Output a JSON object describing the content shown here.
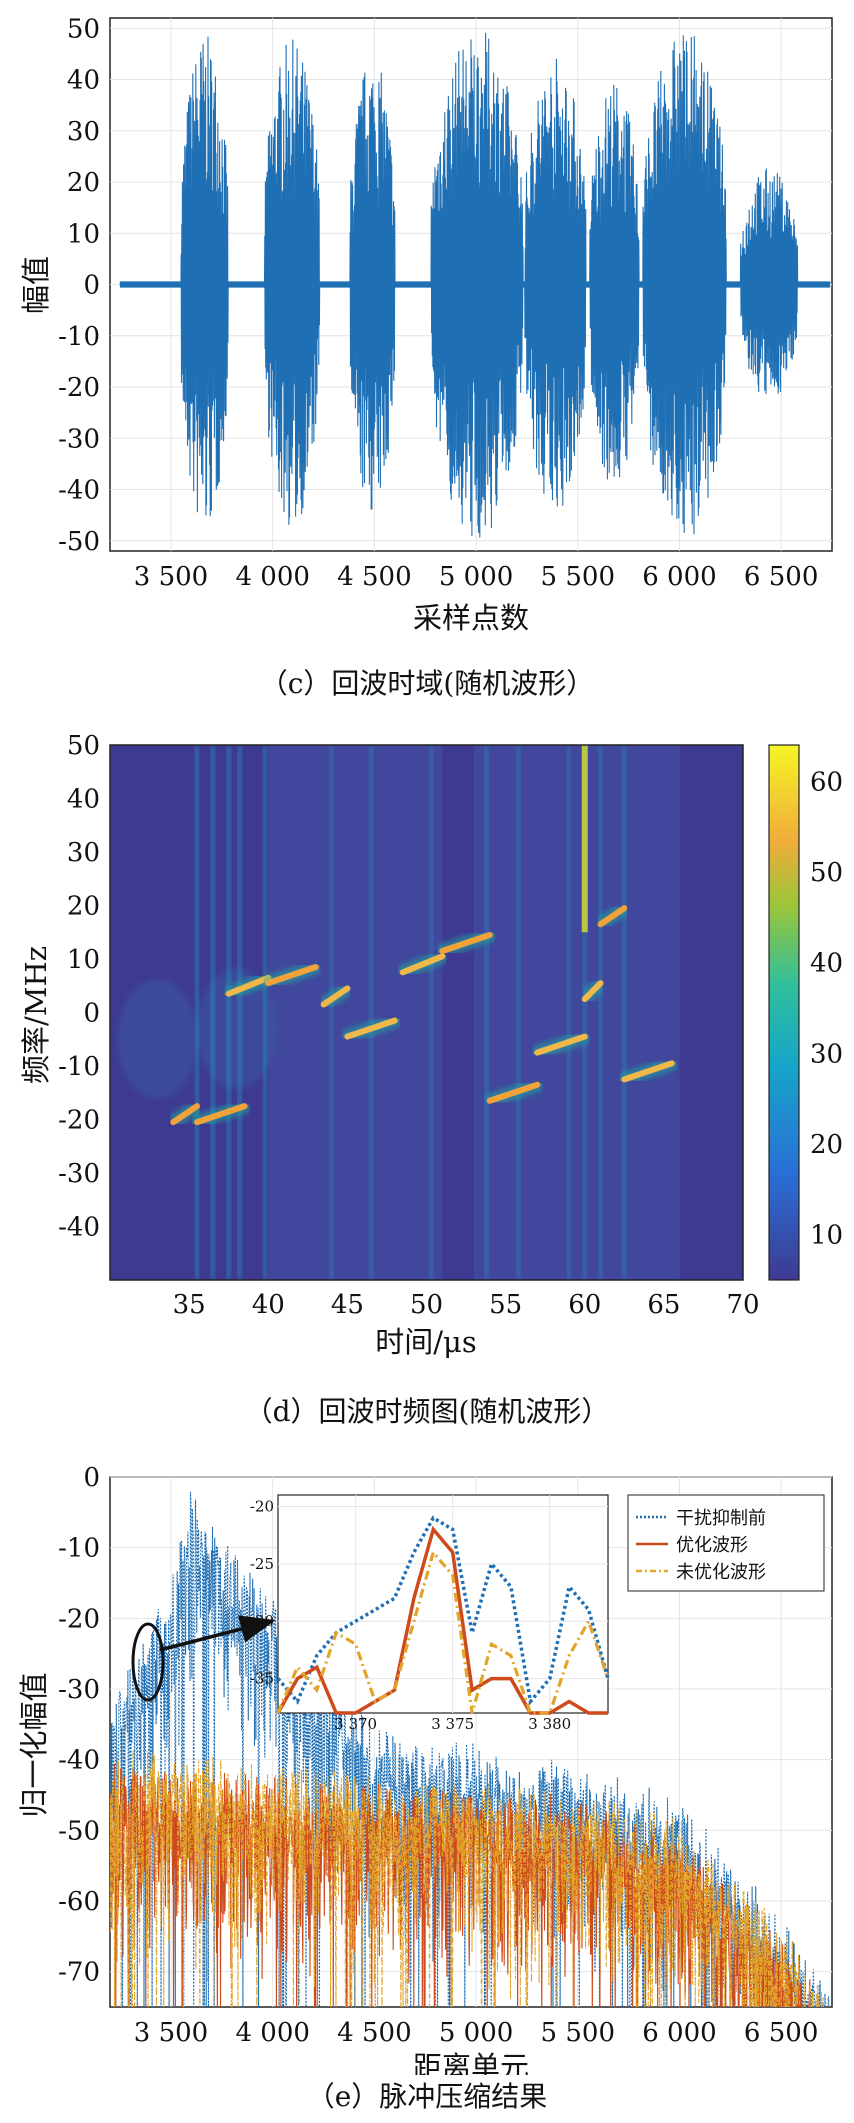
{
  "panels": {
    "c": {
      "caption": "（c）回波时域(随机波形）",
      "ylabel": "幅值",
      "xlabel": "采样点数",
      "yticks": [
        "50",
        "40",
        "30",
        "20",
        "10",
        "0",
        "-10",
        "-20",
        "-30",
        "-40",
        "-50"
      ],
      "xticks": [
        "3 500",
        "4 000",
        "4 500",
        "5 000",
        "5 500",
        "6 000",
        "6 500"
      ]
    },
    "d": {
      "caption": "（d）回波时频图(随机波形）",
      "ylabel": "频率/MHz",
      "xlabel": "时间/μs",
      "yticks": [
        "50",
        "40",
        "30",
        "20",
        "10",
        "0",
        "-10",
        "-20",
        "-30",
        "-40"
      ],
      "xticks": [
        "35",
        "40",
        "45",
        "50",
        "55",
        "60",
        "65",
        "70"
      ],
      "cbticks": [
        "60",
        "50",
        "40",
        "30",
        "20",
        "10"
      ]
    },
    "e": {
      "caption": "（e）脉冲压缩结果",
      "ylabel": "归一化幅值",
      "xlabel": "距离单元",
      "yticks": [
        "0",
        "-10",
        "-20",
        "-30",
        "-40",
        "-50",
        "-60",
        "-70"
      ],
      "xticks": [
        "3 500",
        "4 000",
        "4 500",
        "5 000",
        "5 500",
        "6 000",
        "6 500"
      ],
      "inset_yticks": [
        "-20",
        "-25",
        "-30",
        "-35"
      ],
      "inset_xticks": [
        "3 370",
        "3 375",
        "3 380"
      ],
      "legend": [
        "干扰抑制前",
        "优化波形",
        "未优化波形"
      ]
    }
  },
  "chart_data": [
    {
      "type": "line",
      "title": "",
      "xlabel": "采样点数",
      "ylabel": "幅值",
      "xlim": [
        3200,
        6750
      ],
      "ylim": [
        -52,
        52
      ],
      "grid": true,
      "color": "#1f6fb4",
      "description_of_bursts": [
        {
          "x": [
            3550,
            3780
          ],
          "amp": 49
        },
        {
          "x": [
            3960,
            4230
          ],
          "amp": 48
        },
        {
          "x": [
            4380,
            4600
          ],
          "amp": 45
        },
        {
          "x": [
            4780,
            5230
          ],
          "amp": 50
        },
        {
          "x": [
            5240,
            5540
          ],
          "amp": 45
        },
        {
          "x": [
            5560,
            5800
          ],
          "amp": 40
        },
        {
          "x": [
            5820,
            6230
          ],
          "amp": 50
        },
        {
          "x": [
            6300,
            6580
          ],
          "amp": 23
        }
      ]
    },
    {
      "type": "heatmap",
      "title": "",
      "xlabel": "时间/μs",
      "ylabel": "频率/MHz",
      "xlim": [
        30,
        70
      ],
      "ylim": [
        -50,
        50
      ],
      "colorbar_range": [
        5,
        64
      ],
      "segments": [
        {
          "t": [
            34,
            35.5
          ],
          "f": -19
        },
        {
          "t": [
            35.5,
            38.5
          ],
          "f": -19
        },
        {
          "t": [
            37.5,
            40
          ],
          "f": 5
        },
        {
          "t": [
            40,
            43
          ],
          "f": 7
        },
        {
          "t": [
            43.5,
            45
          ],
          "f": 3
        },
        {
          "t": [
            45,
            48
          ],
          "f": -3
        },
        {
          "t": [
            48.5,
            51
          ],
          "f": 9
        },
        {
          "t": [
            51,
            54
          ],
          "f": 13
        },
        {
          "t": [
            54,
            57
          ],
          "f": -15
        },
        {
          "t": [
            57,
            60
          ],
          "f": -6
        },
        {
          "t": [
            60,
            61
          ],
          "f": 4
        },
        {
          "t": [
            61,
            62.5
          ],
          "f": 18
        },
        {
          "t": [
            62.5,
            65.5
          ],
          "f": -11
        }
      ]
    },
    {
      "type": "line",
      "title": "",
      "xlabel": "距离单元",
      "ylabel": "归一化幅值",
      "xlim": [
        3200,
        6750
      ],
      "ylim": [
        -75,
        0
      ],
      "grid": true,
      "legend_position": "top-right",
      "series": [
        {
          "name": "干扰抑制前",
          "color": "#1f6fb4",
          "style": "dotted",
          "envelope_x": [
            3200,
            3500,
            3600,
            3800,
            4500,
            5500,
            6000,
            6500,
            6750
          ],
          "envelope_y": [
            -30,
            -15,
            0,
            -10,
            -35,
            -40,
            -45,
            -62,
            -72
          ]
        },
        {
          "name": "优化波形",
          "color": "#cc4a1c",
          "style": "solid",
          "envelope_x": [
            3200,
            4000,
            5500,
            6000,
            6500,
            6750
          ],
          "envelope_y": [
            -40,
            -42,
            -45,
            -50,
            -65,
            -74
          ]
        },
        {
          "name": "未优化波形",
          "color": "#e3a42a",
          "style": "dashdot",
          "envelope_x": [
            3200,
            4000,
            5500,
            6000,
            6500,
            6750
          ],
          "envelope_y": [
            -38,
            -40,
            -44,
            -48,
            -63,
            -73
          ]
        }
      ],
      "inset": {
        "xlim": [
          3366,
          3383
        ],
        "ylim": [
          -38,
          -19
        ],
        "series": [
          {
            "name": "干扰抑制前",
            "x": [
              3366,
              3367,
              3368,
              3369,
              3370,
              3371,
              3372,
              3373,
              3374,
              3375,
              3376,
              3377,
              3378,
              3379,
              3380,
              3381,
              3382,
              3383
            ],
            "y": [
              -35,
              -37,
              -33,
              -31,
              -30,
              -29,
              -28,
              -24,
              -21,
              -22,
              -31,
              -25,
              -27,
              -37,
              -35,
              -27,
              -29,
              -35
            ]
          },
          {
            "name": "优化波形",
            "x": [
              3366,
              3367,
              3368,
              3369,
              3370,
              3371,
              3372,
              3373,
              3374,
              3375,
              3376,
              3377,
              3378,
              3379,
              3380,
              3381,
              3382,
              3383
            ],
            "y": [
              -38,
              -35,
              -34,
              -38,
              -38,
              -37,
              -36,
              -28,
              -22,
              -24,
              -36,
              -35,
              -35,
              -38,
              -38,
              -37,
              -38,
              -38
            ]
          },
          {
            "name": "未优化波形",
            "x": [
              3366,
              3367,
              3368,
              3369,
              3370,
              3371,
              3372,
              3373,
              3374,
              3375,
              3376,
              3377,
              3378,
              3379,
              3380,
              3381,
              3382,
              3383
            ],
            "y": [
              -38,
              -34,
              -36,
              -31,
              -32,
              -37,
              -36,
              -30,
              -24,
              -26,
              -38,
              -32,
              -33,
              -38,
              -38,
              -33,
              -30,
              -35
            ]
          }
        ]
      }
    }
  ]
}
